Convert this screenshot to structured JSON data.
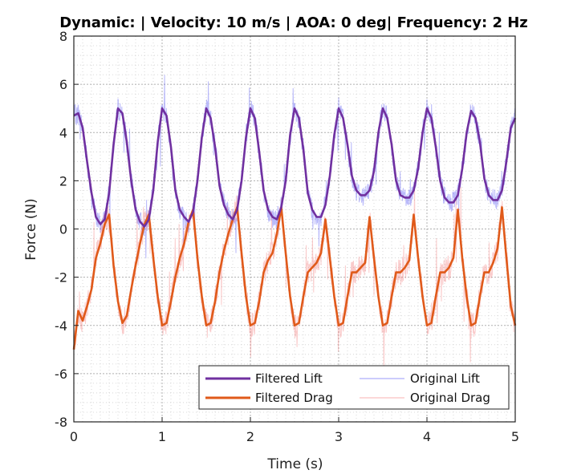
{
  "chart_data": {
    "type": "line",
    "title": "Dynamic:  |  Velocity: 10 m/s  |  AOA: 0 deg|  Frequency: 2 Hz",
    "xlabel": "Time (s)",
    "ylabel": "Force (N)",
    "xlim": [
      0,
      5
    ],
    "ylim": [
      -8,
      8
    ],
    "xticks": [
      0,
      1,
      2,
      3,
      4,
      5
    ],
    "yticks": [
      -8,
      -6,
      -4,
      -2,
      0,
      2,
      4,
      6,
      8
    ],
    "x_tick_labels": [
      "0",
      "1",
      "2",
      "3",
      "4",
      "5"
    ],
    "y_tick_labels": [
      "-8",
      "-6",
      "-4",
      "-2",
      "0",
      "2",
      "4",
      "6",
      "8"
    ],
    "grid": "major and minor, dotted",
    "legend_position": "bottom-right",
    "colors": {
      "filtered_lift": "#7030A0",
      "filtered_drag": "#E05A1A",
      "original_lift": "#3A3AF0",
      "original_drag": "#F06A6A"
    },
    "series": [
      {
        "name": "Filtered Lift",
        "x": [
          0.0,
          0.05,
          0.1,
          0.15,
          0.2,
          0.25,
          0.3,
          0.35,
          0.4,
          0.45,
          0.5,
          0.55,
          0.6,
          0.65,
          0.7,
          0.75,
          0.8,
          0.85,
          0.9,
          0.95,
          1.0,
          1.05,
          1.1,
          1.15,
          1.2,
          1.25,
          1.3,
          1.35,
          1.4,
          1.45,
          1.5,
          1.55,
          1.6,
          1.65,
          1.7,
          1.75,
          1.8,
          1.85,
          1.9,
          1.95,
          2.0,
          2.05,
          2.1,
          2.15,
          2.2,
          2.25,
          2.3,
          2.35,
          2.4,
          2.45,
          2.5,
          2.55,
          2.6,
          2.65,
          2.7,
          2.75,
          2.8,
          2.85,
          2.9,
          2.95,
          3.0,
          3.05,
          3.1,
          3.15,
          3.2,
          3.25,
          3.3,
          3.35,
          3.4,
          3.45,
          3.5,
          3.55,
          3.6,
          3.65,
          3.7,
          3.75,
          3.8,
          3.85,
          3.9,
          3.95,
          4.0,
          4.05,
          4.1,
          4.15,
          4.2,
          4.25,
          4.3,
          4.35,
          4.4,
          4.45,
          4.5,
          4.55,
          4.6,
          4.65,
          4.7,
          4.75,
          4.8,
          4.85,
          4.9,
          4.95,
          5.0
        ],
        "y": [
          4.7,
          4.8,
          4.2,
          2.8,
          1.5,
          0.5,
          0.2,
          0.4,
          1.5,
          3.5,
          5.0,
          4.8,
          3.6,
          2.0,
          0.8,
          0.3,
          0.1,
          0.4,
          1.6,
          3.6,
          5.0,
          4.7,
          3.4,
          1.6,
          0.8,
          0.5,
          0.3,
          0.7,
          2.0,
          3.8,
          5.0,
          4.6,
          3.4,
          1.8,
          1.0,
          0.6,
          0.4,
          0.8,
          2.0,
          3.8,
          5.0,
          4.6,
          3.2,
          1.6,
          0.8,
          0.5,
          0.4,
          0.9,
          2.0,
          3.9,
          5.0,
          4.6,
          3.3,
          1.5,
          0.8,
          0.5,
          0.5,
          1.0,
          2.2,
          3.9,
          5.0,
          4.6,
          3.5,
          2.2,
          1.6,
          1.4,
          1.4,
          1.6,
          2.4,
          4.0,
          5.0,
          4.6,
          3.5,
          2.0,
          1.4,
          1.3,
          1.3,
          1.6,
          2.5,
          4.0,
          5.0,
          4.6,
          3.4,
          2.0,
          1.3,
          1.1,
          1.1,
          1.4,
          2.5,
          4.0,
          4.9,
          4.6,
          3.6,
          2.1,
          1.4,
          1.2,
          1.2,
          1.6,
          2.8,
          4.2,
          4.6
        ]
      },
      {
        "name": "Filtered Drag",
        "x": [
          0.0,
          0.05,
          0.1,
          0.15,
          0.2,
          0.25,
          0.3,
          0.35,
          0.4,
          0.45,
          0.5,
          0.55,
          0.6,
          0.65,
          0.7,
          0.75,
          0.8,
          0.85,
          0.9,
          0.95,
          1.0,
          1.05,
          1.1,
          1.15,
          1.2,
          1.25,
          1.3,
          1.35,
          1.4,
          1.45,
          1.5,
          1.55,
          1.6,
          1.65,
          1.7,
          1.75,
          1.8,
          1.85,
          1.9,
          1.95,
          2.0,
          2.05,
          2.1,
          2.15,
          2.2,
          2.25,
          2.3,
          2.35,
          2.4,
          2.45,
          2.5,
          2.55,
          2.6,
          2.65,
          2.7,
          2.75,
          2.8,
          2.85,
          2.9,
          2.95,
          3.0,
          3.05,
          3.1,
          3.15,
          3.2,
          3.25,
          3.3,
          3.35,
          3.4,
          3.45,
          3.5,
          3.55,
          3.6,
          3.65,
          3.7,
          3.75,
          3.8,
          3.85,
          3.9,
          3.95,
          4.0,
          4.05,
          4.1,
          4.15,
          4.2,
          4.25,
          4.3,
          4.35,
          4.4,
          4.45,
          4.5,
          4.55,
          4.6,
          4.65,
          4.7,
          4.75,
          4.8,
          4.85,
          4.9,
          4.95,
          5.0
        ],
        "y": [
          -5.0,
          -3.4,
          -3.8,
          -3.2,
          -2.5,
          -1.2,
          -0.6,
          0.2,
          0.6,
          -1.5,
          -3.0,
          -3.9,
          -3.6,
          -2.5,
          -1.5,
          -0.6,
          0.2,
          0.6,
          -1.2,
          -2.8,
          -4.0,
          -3.9,
          -3.0,
          -2.0,
          -1.2,
          -0.6,
          0.3,
          0.8,
          -1.2,
          -2.8,
          -4.0,
          -3.9,
          -3.0,
          -1.8,
          -0.9,
          -0.2,
          0.4,
          0.9,
          -1.0,
          -2.8,
          -4.0,
          -3.9,
          -3.0,
          -1.8,
          -1.3,
          -1.0,
          -0.2,
          0.9,
          -1.0,
          -2.8,
          -4.0,
          -3.9,
          -2.8,
          -1.8,
          -1.6,
          -1.4,
          -1.0,
          0.4,
          -1.2,
          -2.8,
          -4.0,
          -3.9,
          -2.8,
          -1.8,
          -1.8,
          -1.6,
          -1.4,
          0.5,
          -1.2,
          -2.8,
          -4.0,
          -3.9,
          -2.8,
          -1.8,
          -1.8,
          -1.6,
          -1.3,
          0.6,
          -1.2,
          -2.8,
          -4.0,
          -3.9,
          -2.8,
          -1.8,
          -1.8,
          -1.6,
          -1.2,
          0.8,
          -1.2,
          -2.8,
          -4.0,
          -3.9,
          -2.8,
          -1.8,
          -1.8,
          -1.4,
          -0.8,
          0.9,
          -1.2,
          -3.2,
          -4.0
        ]
      },
      {
        "name": "Original Lift"
      },
      {
        "name": "Original Drag"
      }
    ]
  }
}
